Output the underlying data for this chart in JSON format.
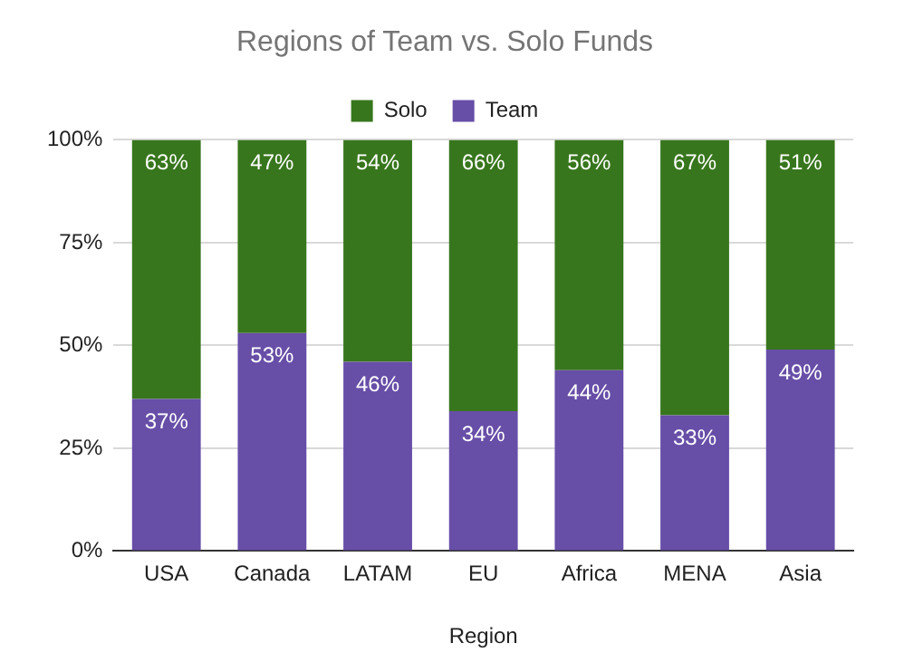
{
  "chart_data": {
    "type": "bar",
    "title": "Regions of Team vs. Solo Funds",
    "xlabel": "Region",
    "categories": [
      "USA",
      "Canada",
      "LATAM",
      "EU",
      "Africa",
      "MENA",
      "Asia"
    ],
    "stacked": true,
    "legend": "top",
    "grid": "y",
    "ylim": [
      0,
      100
    ],
    "yticks": [
      {
        "value": 0,
        "label": "0%"
      },
      {
        "value": 25,
        "label": "25%"
      },
      {
        "value": 50,
        "label": "50%"
      },
      {
        "value": 75,
        "label": "75%"
      },
      {
        "value": 100,
        "label": "100%"
      }
    ],
    "series": [
      {
        "name": "Team",
        "color": "#674ea7",
        "values": [
          37,
          53,
          46,
          34,
          44,
          33,
          49
        ],
        "value_labels": [
          "37%",
          "53%",
          "46%",
          "34%",
          "44%",
          "33%",
          "49%"
        ]
      },
      {
        "name": "Solo",
        "color": "#38761d",
        "values": [
          63,
          47,
          54,
          66,
          56,
          67,
          51
        ],
        "value_labels": [
          "63%",
          "47%",
          "54%",
          "66%",
          "56%",
          "67%",
          "51%"
        ]
      }
    ]
  }
}
